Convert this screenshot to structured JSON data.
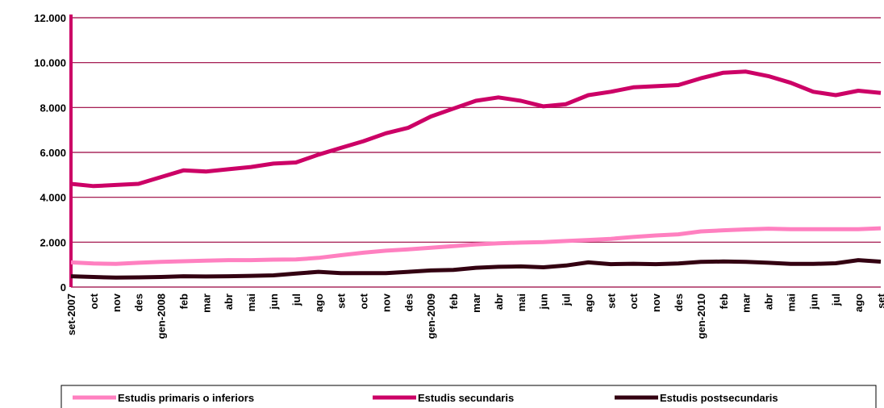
{
  "chart_data": {
    "type": "line",
    "categories": [
      "set-2007",
      "oct",
      "nov",
      "des",
      "gen-2008",
      "feb",
      "mar",
      "abr",
      "mai",
      "jun",
      "jul",
      "ago",
      "set",
      "oct",
      "nov",
      "des",
      "gen-2009",
      "feb",
      "mar",
      "abr",
      "mai",
      "jun",
      "jul",
      "ago",
      "set",
      "oct",
      "nov",
      "des",
      "gen-2010",
      "feb",
      "mar",
      "abr",
      "mai",
      "jun",
      "jul",
      "ago",
      "set"
    ],
    "series": [
      {
        "name": "Estudis primaris o inferiors",
        "color": "#ff80c0",
        "values": [
          1100,
          1050,
          1030,
          1080,
          1120,
          1150,
          1180,
          1200,
          1200,
          1220,
          1230,
          1300,
          1420,
          1530,
          1620,
          1680,
          1750,
          1820,
          1900,
          1950,
          1980,
          2000,
          2050,
          2100,
          2150,
          2230,
          2300,
          2350,
          2480,
          2530,
          2570,
          2600,
          2580,
          2580,
          2580,
          2580,
          2620
        ]
      },
      {
        "name": "Estudis secundaris",
        "color": "#cc0066",
        "values": [
          4600,
          4500,
          4550,
          4600,
          4900,
          5200,
          5150,
          5250,
          5350,
          5500,
          5550,
          5900,
          6200,
          6500,
          6850,
          7100,
          7600,
          7950,
          8300,
          8450,
          8300,
          8050,
          8150,
          8550,
          8700,
          8900,
          8950,
          9000,
          9300,
          9550,
          9600,
          9400,
          9100,
          8700,
          8550,
          8750,
          8650
        ]
      },
      {
        "name": "Estudis postsecundaris",
        "color": "#330011",
        "values": [
          480,
          450,
          420,
          430,
          450,
          480,
          470,
          480,
          500,
          520,
          600,
          680,
          620,
          620,
          620,
          680,
          740,
          760,
          860,
          900,
          920,
          880,
          960,
          1100,
          1020,
          1040,
          1020,
          1050,
          1120,
          1140,
          1120,
          1080,
          1030,
          1030,
          1060,
          1200,
          1130
        ]
      }
    ],
    "ylim": [
      0,
      12000
    ],
    "yticks": [
      0,
      {
        "value": 2000,
        "label": "2.000"
      },
      {
        "value": 4000,
        "label": "4.000"
      },
      {
        "value": 6000,
        "label": "6.000"
      },
      {
        "value": 8000,
        "label": "8.000"
      },
      {
        "value": 10000,
        "label": "10.000"
      },
      {
        "value": 12000,
        "label": "12.000"
      }
    ],
    "grid": true,
    "legend": "bottom"
  }
}
